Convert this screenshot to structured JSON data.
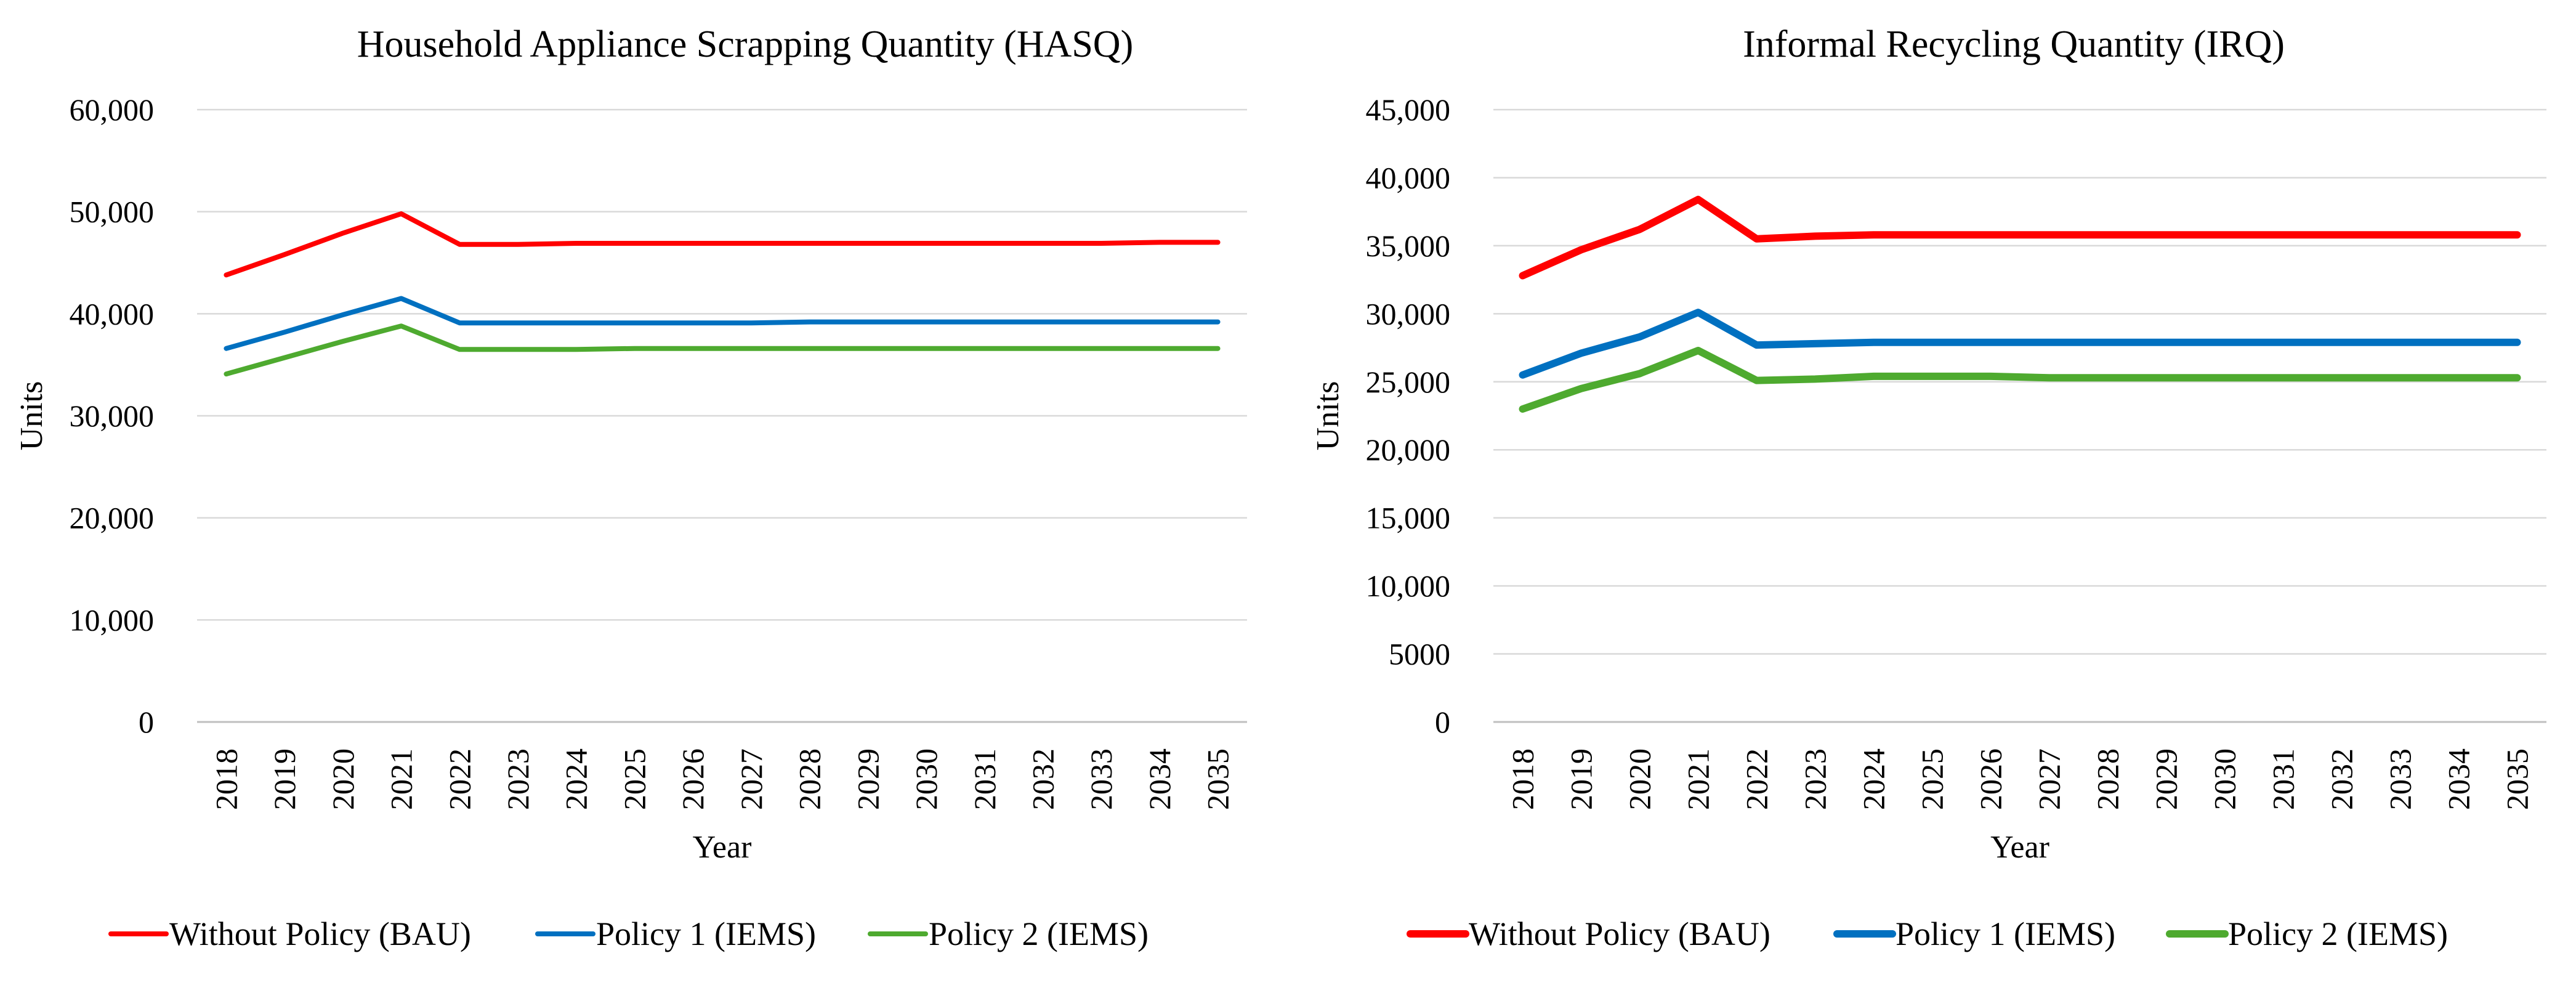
{
  "chart_data": [
    {
      "type": "line",
      "title": "Household Appliance Scrapping Quantity (HASQ)",
      "xlabel": "Year",
      "ylabel": "Units",
      "ylim": [
        0,
        60000
      ],
      "yticks": [
        0,
        10000,
        20000,
        30000,
        40000,
        50000,
        60000
      ],
      "ytick_labels": [
        "0",
        "10,000",
        "20,000",
        "30,000",
        "40,000",
        "50,000",
        "60,000"
      ],
      "grid": true,
      "legend_position": "bottom",
      "categories": [
        "2018",
        "2019",
        "2020",
        "2021",
        "2022",
        "2023",
        "2024",
        "2025",
        "2026",
        "2027",
        "2028",
        "2029",
        "2030",
        "2031",
        "2032",
        "2033",
        "2034",
        "2035"
      ],
      "series": [
        {
          "name": "Without Policy (BAU)",
          "color": "#ff0000",
          "values": [
            43800,
            45800,
            47900,
            49800,
            46800,
            46800,
            46900,
            46900,
            46900,
            46900,
            46900,
            46900,
            46900,
            46900,
            46900,
            46900,
            47000,
            47000
          ]
        },
        {
          "name": "Policy 1 (IEMS)",
          "color": "#0070c0",
          "values": [
            36600,
            38200,
            39900,
            41500,
            39100,
            39100,
            39100,
            39100,
            39100,
            39100,
            39200,
            39200,
            39200,
            39200,
            39200,
            39200,
            39200,
            39200
          ]
        },
        {
          "name": "Policy 2 (IEMS)",
          "color": "#4eaa2f",
          "values": [
            34100,
            35700,
            37300,
            38800,
            36500,
            36500,
            36500,
            36600,
            36600,
            36600,
            36600,
            36600,
            36600,
            36600,
            36600,
            36600,
            36600,
            36600
          ]
        }
      ]
    },
    {
      "type": "line",
      "title": "Informal Recycling Quantity (IRQ)",
      "xlabel": "Year",
      "ylabel": "Units",
      "ylim": [
        0,
        45000
      ],
      "yticks": [
        0,
        5000,
        10000,
        15000,
        20000,
        25000,
        30000,
        35000,
        40000,
        45000
      ],
      "ytick_labels": [
        "0",
        "5000",
        "10,000",
        "15,000",
        "20,000",
        "25,000",
        "30,000",
        "35,000",
        "40,000",
        "45,000"
      ],
      "grid": true,
      "legend_position": "bottom",
      "categories": [
        "2018",
        "2019",
        "2020",
        "2021",
        "2022",
        "2023",
        "2024",
        "2025",
        "2026",
        "2027",
        "2028",
        "2029",
        "2030",
        "2031",
        "2032",
        "2033",
        "2034",
        "2035"
      ],
      "series": [
        {
          "name": "Without Policy (BAU)",
          "color": "#ff0000",
          "values": [
            32800,
            34700,
            36200,
            38400,
            35500,
            35700,
            35800,
            35800,
            35800,
            35800,
            35800,
            35800,
            35800,
            35800,
            35800,
            35800,
            35800,
            35800
          ]
        },
        {
          "name": "Policy 1 (IEMS)",
          "color": "#0070c0",
          "values": [
            25500,
            27100,
            28300,
            30100,
            27700,
            27800,
            27900,
            27900,
            27900,
            27900,
            27900,
            27900,
            27900,
            27900,
            27900,
            27900,
            27900,
            27900
          ]
        },
        {
          "name": "Policy 2 (IEMS)",
          "color": "#4eaa2f",
          "values": [
            23000,
            24500,
            25600,
            27300,
            25100,
            25200,
            25400,
            25400,
            25400,
            25300,
            25300,
            25300,
            25300,
            25300,
            25300,
            25300,
            25300,
            25300
          ]
        }
      ]
    }
  ]
}
